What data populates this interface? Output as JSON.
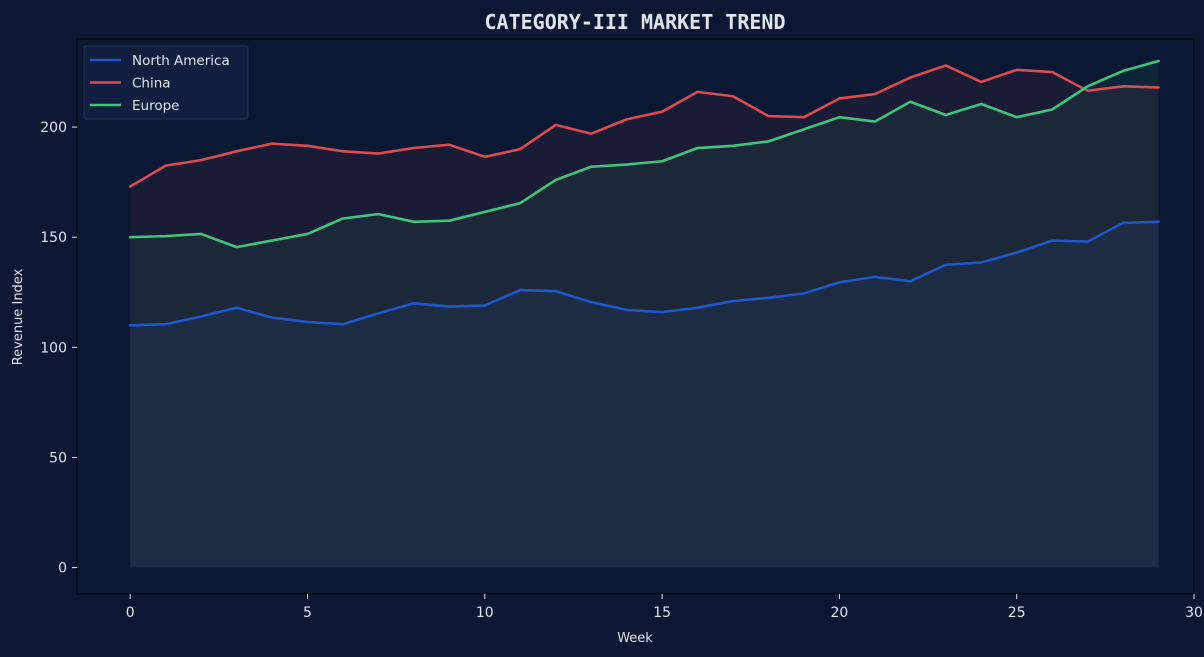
{
  "chart_data": {
    "type": "area",
    "title": "CATEGORY-III MARKET TREND",
    "xlabel": "Week",
    "ylabel": "Revenue Index",
    "xlim": [
      -1.5,
      30
    ],
    "ylim": [
      -12,
      240
    ],
    "xticks": [
      0,
      5,
      10,
      15,
      20,
      25,
      30
    ],
    "yticks": [
      0,
      50,
      100,
      150,
      200
    ],
    "grid": false,
    "legend_position": "top-left",
    "x": [
      0,
      1,
      2,
      3,
      4,
      5,
      6,
      7,
      8,
      9,
      10,
      11,
      12,
      13,
      14,
      15,
      16,
      17,
      18,
      19,
      20,
      21,
      22,
      23,
      24,
      25,
      26,
      27,
      28,
      29
    ],
    "series": [
      {
        "name": "North America",
        "color": "#1f56c9",
        "values": [
          110,
          110.5,
          114,
          118,
          113.5,
          111.5,
          110.5,
          115.5,
          120,
          118.5,
          119,
          126,
          125.5,
          120.5,
          117,
          116,
          118,
          121,
          122.5,
          124.5,
          129.5,
          132,
          130,
          137.5,
          138.5,
          143,
          148.5,
          148,
          156.5,
          157
        ]
      },
      {
        "name": "China",
        "color": "#dc4a52",
        "values": [
          173,
          182.5,
          185,
          189,
          192.5,
          191.5,
          189,
          188,
          190.5,
          192,
          186.5,
          190,
          201,
          197,
          203.5,
          207,
          216,
          214,
          205,
          204.5,
          213,
          215,
          222.5,
          228,
          220.5,
          226,
          225,
          216.5,
          218.5,
          218
        ]
      },
      {
        "name": "Europe",
        "color": "#3ec47c",
        "values": [
          150,
          150.5,
          151.5,
          145.5,
          148.5,
          151.5,
          158.5,
          160.5,
          157,
          157.5,
          161.5,
          165.5,
          176,
          182,
          183,
          184.5,
          190.5,
          191.5,
          193.5,
          199,
          204.5,
          202.5,
          211.5,
          205.5,
          210.5,
          204.5,
          208,
          218.5,
          225.5,
          230
        ]
      }
    ]
  },
  "colors": {
    "background": "#0b1733",
    "plot_background": "#0a1834",
    "text": "#dfe5ee"
  }
}
